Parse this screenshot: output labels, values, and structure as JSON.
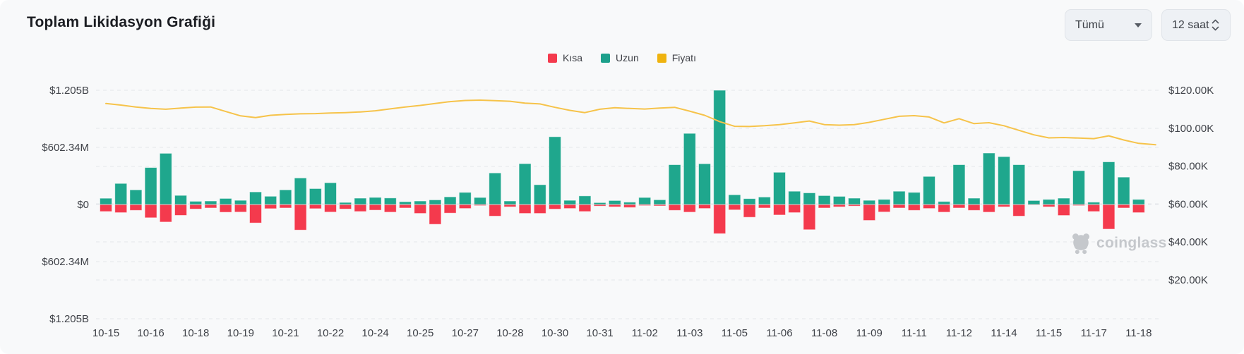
{
  "header": {
    "title": "Toplam Likidasyon Grafiği"
  },
  "controls": {
    "symbol_select": {
      "value": "Tümü"
    },
    "interval_select": {
      "value": "12 saat"
    }
  },
  "legend": [
    {
      "label": "Kısa",
      "color": "#f43a4d"
    },
    {
      "label": "Uzun",
      "color": "#1ca08b"
    },
    {
      "label": "Fiyatı",
      "color": "#efb30f"
    }
  ],
  "watermark": {
    "text": "coinglass"
  },
  "chart_data": {
    "type": "bar",
    "subtype": "bidirectional bars with overlaid price line",
    "title": "Toplam Likidasyon Grafiği",
    "bar_interval": "12 saat",
    "bars_per_category_label": 3,
    "grid": "dashed horizontal",
    "legend_position": "top-center",
    "categories": [
      "10-15",
      "10-16",
      "10-18",
      "10-19",
      "10-21",
      "10-22",
      "10-24",
      "10-25",
      "10-27",
      "10-28",
      "10-30",
      "10-31",
      "11-02",
      "11-03",
      "11-05",
      "11-06",
      "11-08",
      "11-09",
      "11-11",
      "11-12",
      "11-14",
      "11-15",
      "11-17",
      "11-18"
    ],
    "series": [
      {
        "name": "Kısa",
        "type": "bar",
        "direction": "down",
        "axis": "left",
        "color": "#f43a4d",
        "unit": "USD millions (estimated from axis)",
        "values": [
          74,
          86,
          62,
          140,
          185,
          115,
          48,
          37,
          82,
          80,
          195,
          44,
          37,
          270,
          44,
          80,
          48,
          74,
          60,
          81,
          37,
          94,
          209,
          91,
          42,
          12,
          123,
          25,
          94,
          94,
          49,
          42,
          74,
          17,
          25,
          32,
          12,
          15,
          62,
          81,
          42,
          308,
          57,
          135,
          37,
          111,
          86,
          266,
          37,
          25,
          17,
          168,
          79,
          37,
          62,
          42,
          81,
          37,
          62,
          81,
          25,
          123,
          7,
          25,
          116,
          12,
          74,
          260,
          37,
          86
        ]
      },
      {
        "name": "Uzun",
        "type": "bar",
        "direction": "up",
        "axis": "left",
        "color": "#1fa78d",
        "unit": "USD millions (estimated from axis)",
        "values": [
          66,
          222,
          155,
          390,
          540,
          96,
          34,
          37,
          64,
          44,
          133,
          87,
          155,
          280,
          168,
          230,
          22,
          67,
          75,
          69,
          30,
          37,
          49,
          81,
          128,
          74,
          333,
          37,
          431,
          209,
          715,
          44,
          91,
          20,
          42,
          25,
          74,
          50,
          420,
          750,
          430,
          1205,
          103,
          62,
          79,
          340,
          140,
          123,
          94,
          86,
          67,
          44,
          54,
          140,
          128,
          296,
          32,
          420,
          67,
          543,
          505,
          420,
          42,
          54,
          67,
          357,
          25,
          450,
          289,
          54
        ]
      },
      {
        "name": "Fiyatı",
        "type": "line",
        "axis": "right",
        "color": "#f6c34a",
        "unit": "USD thousands (estimated from axis)",
        "values": [
          113.0,
          112.2,
          111.2,
          110.4,
          110.0,
          110.6,
          111.1,
          111.2,
          108.8,
          106.5,
          105.6,
          106.8,
          107.3,
          107.6,
          107.7,
          108.0,
          108.2,
          108.6,
          109.2,
          110.2,
          111.2,
          112.0,
          113.0,
          114.0,
          114.6,
          114.8,
          114.5,
          114.2,
          113.2,
          112.8,
          111.0,
          109.4,
          108.2,
          110.0,
          110.8,
          110.4,
          110.1,
          110.6,
          111.0,
          109.0,
          106.8,
          103.5,
          101.0,
          100.9,
          101.3,
          101.9,
          102.8,
          103.8,
          101.9,
          101.6,
          101.9,
          103.1,
          104.7,
          106.3,
          106.6,
          105.9,
          102.8,
          105.0,
          102.4,
          102.9,
          101.3,
          98.9,
          96.5,
          94.9,
          95.1,
          94.8,
          94.5,
          96.0,
          93.8,
          92.0
        ]
      }
    ],
    "left_axis": {
      "unit": "USD (liquidations)",
      "range_millions": [
        -1205,
        1205
      ],
      "ticks": [
        {
          "label": "$1.205B",
          "value": 1205
        },
        {
          "label": "$602.34M",
          "value": 602.34
        },
        {
          "label": "$0",
          "value": 0
        },
        {
          "label": "$602.34M",
          "value": -602.34
        },
        {
          "label": "$1.205B",
          "value": -1205
        }
      ]
    },
    "right_axis": {
      "unit": "USD (price)",
      "range_thousands": [
        20,
        120
      ],
      "ticks": [
        {
          "label": "$120.00K",
          "value": 120
        },
        {
          "label": "$100.00K",
          "value": 100
        },
        {
          "label": "$80.00K",
          "value": 80
        },
        {
          "label": "$60.00K",
          "value": 60
        },
        {
          "label": "$40.00K",
          "value": 40
        },
        {
          "label": "$20.00K",
          "value": 20
        }
      ]
    }
  }
}
